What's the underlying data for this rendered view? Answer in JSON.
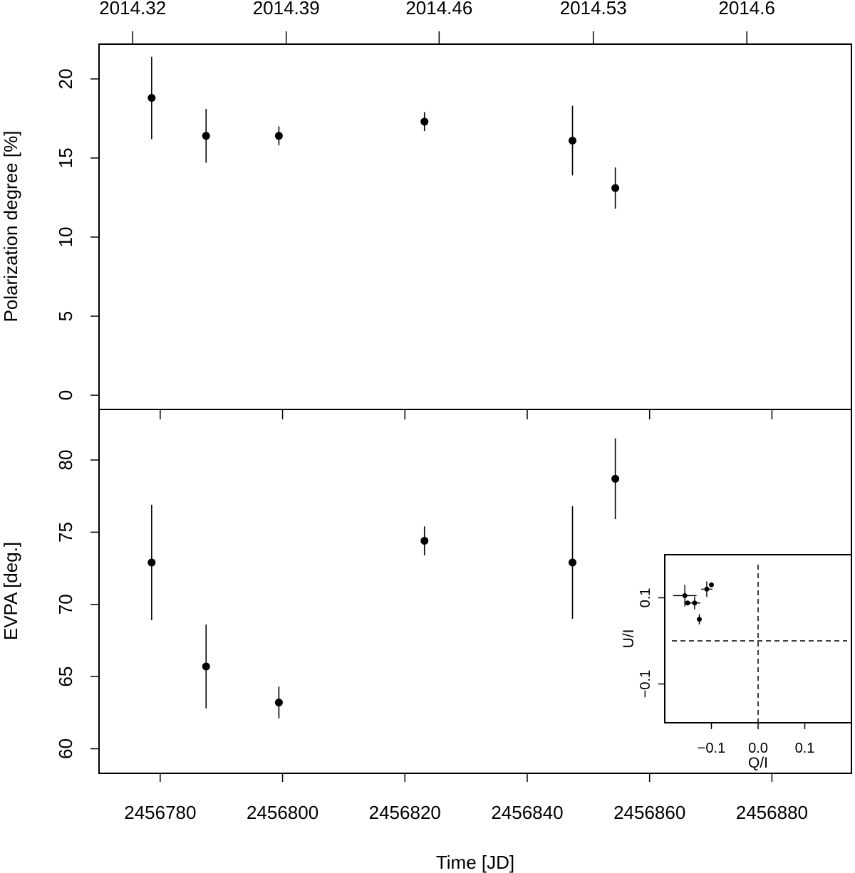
{
  "chart_data": [
    {
      "type": "scatter",
      "panel": "top",
      "ylabel": "Polarization degree [%]",
      "xlabel": "",
      "xlim": [
        2456770,
        2456893
      ],
      "ylim": [
        -0.9,
        22.2
      ],
      "yticks": [
        "0",
        "5",
        "10",
        "15",
        "20"
      ],
      "top_axis_label_values": [
        "2014.32",
        "2014.39",
        "2014.46",
        "2014.53",
        "2014.6"
      ],
      "top_axis_tick_jd": [
        2456775.5,
        2456800.6,
        2456825.6,
        2456850.8,
        2456875.9
      ],
      "series": [
        {
          "name": "Polarization degree",
          "x": [
            2456778.6,
            2456787.5,
            2456799.4,
            2456823.2,
            2456847.4,
            2456854.4
          ],
          "y": [
            18.8,
            16.4,
            16.4,
            17.3,
            16.1,
            13.1
          ],
          "yerr": [
            2.6,
            1.7,
            0.6,
            0.6,
            2.2,
            1.3
          ]
        }
      ]
    },
    {
      "type": "scatter",
      "panel": "bottom",
      "ylabel": "EVPA [deg.]",
      "xlabel": "Time [JD]",
      "xlim": [
        2456770,
        2456893
      ],
      "ylim": [
        58.3,
        83.5
      ],
      "yticks": [
        "60",
        "65",
        "70",
        "75",
        "80"
      ],
      "xticks": [
        "2456780",
        "2456800",
        "2456820",
        "2456840",
        "2456860",
        "2456880"
      ],
      "series": [
        {
          "name": "EVPA",
          "x": [
            2456778.6,
            2456787.5,
            2456799.4,
            2456823.2,
            2456847.4,
            2456854.4
          ],
          "y": [
            72.9,
            65.7,
            63.2,
            74.4,
            72.9,
            78.7
          ],
          "yerr": [
            4.0,
            2.9,
            1.1,
            1.0,
            3.9,
            2.8
          ]
        }
      ]
    },
    {
      "type": "scatter",
      "panel": "inset",
      "xlabel": "Q/I",
      "ylabel": "U/I",
      "xlim": [
        -0.2,
        0.2
      ],
      "ylim": [
        -0.19,
        0.2
      ],
      "xticks": [
        "-0.1",
        "0.0",
        "0.1"
      ],
      "yticks": [
        "-0.1",
        "0.1"
      ],
      "reference_lines": "dashed at Q/I = 0 and U/I = 0",
      "series": [
        {
          "name": "Q/I vs U/I",
          "x": [
            -0.157,
            -0.151,
            -0.136,
            -0.126,
            -0.11,
            -0.1
          ],
          "y": [
            0.105,
            0.088,
            0.088,
            0.05,
            0.12,
            0.13
          ],
          "xerr": [
            0.025,
            0.005,
            0.012,
            0.005,
            0.012,
            0.005
          ],
          "yerr": [
            0.025,
            0.004,
            0.015,
            0.012,
            0.018,
            0.005
          ]
        }
      ]
    }
  ]
}
